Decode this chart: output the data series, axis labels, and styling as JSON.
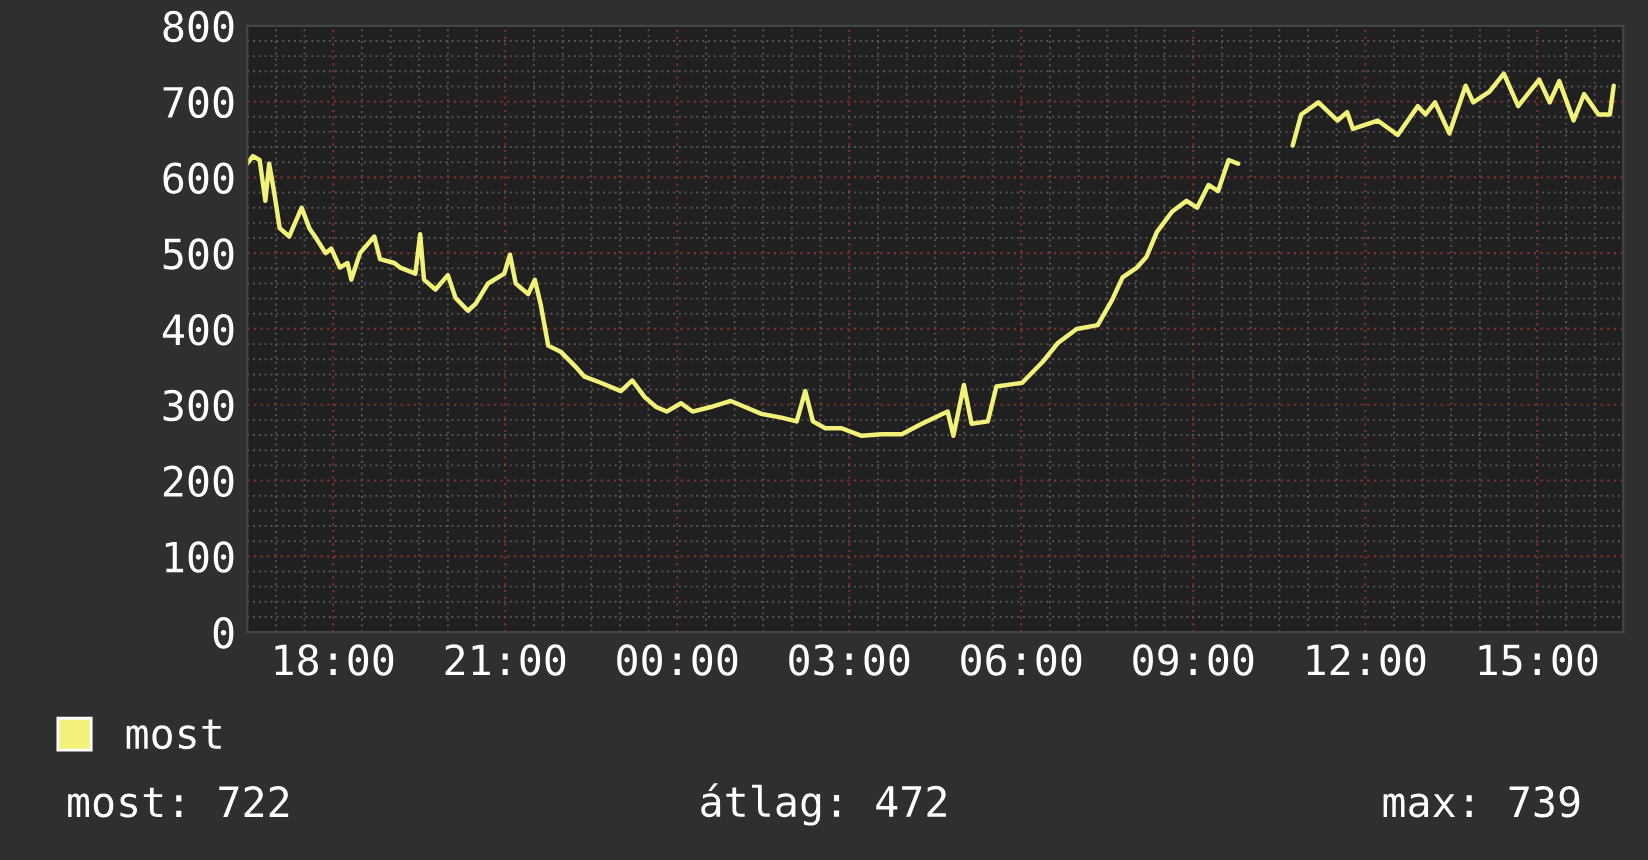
{
  "chart_data": {
    "type": "line",
    "x": [
      "2000-01-01T16:30",
      "2000-01-01T16:36",
      "2000-01-01T16:43",
      "2000-01-01T16:49",
      "2000-01-01T16:53",
      "2000-01-01T16:58",
      "2000-01-01T17:04",
      "2000-01-01T17:14",
      "2000-01-01T17:27",
      "2000-01-01T17:35",
      "2000-01-01T17:41",
      "2000-01-01T17:52",
      "2000-01-01T17:58",
      "2000-01-01T18:07",
      "2000-01-01T18:15",
      "2000-01-01T18:19",
      "2000-01-01T18:28",
      "2000-01-01T18:43",
      "2000-01-01T18:49",
      "2000-01-01T19:04",
      "2000-01-01T19:10",
      "2000-01-01T19:26",
      "2000-01-01T19:31",
      "2000-01-01T19:35",
      "2000-01-01T19:47",
      "2000-01-01T20:00",
      "2000-01-01T20:08",
      "2000-01-01T20:21",
      "2000-01-01T20:29",
      "2000-01-01T20:42",
      "2000-01-01T20:59",
      "2000-01-01T21:05",
      "2000-01-01T21:11",
      "2000-01-01T21:24",
      "2000-01-01T21:31",
      "2000-01-01T21:37",
      "2000-01-01T21:45",
      "2000-01-01T21:58",
      "2000-01-01T22:13",
      "2000-01-01T22:23",
      "2000-01-01T22:40",
      "2000-01-01T23:01",
      "2000-01-01T23:13",
      "2000-01-01T23:26",
      "2000-01-01T23:38",
      "2000-01-01T23:49",
      "2000-01-02T00:04",
      "2000-01-02T00:16",
      "2000-01-02T00:35",
      "2000-01-02T00:56",
      "2000-01-02T01:11",
      "2000-01-02T01:28",
      "2000-01-02T01:49",
      "2000-01-02T02:05",
      "2000-01-02T02:14",
      "2000-01-02T02:22",
      "2000-01-02T02:35",
      "2000-01-02T02:52",
      "2000-01-02T03:13",
      "2000-01-02T03:34",
      "2000-01-02T03:55",
      "2000-01-02T04:16",
      "2000-01-02T04:43",
      "2000-01-02T04:49",
      "2000-01-02T05:00",
      "2000-01-02T05:08",
      "2000-01-02T05:25",
      "2000-01-02T05:34",
      "2000-01-02T06:01",
      "2000-01-02T06:22",
      "2000-01-02T06:38",
      "2000-01-02T06:58",
      "2000-01-02T07:20",
      "2000-01-02T07:35",
      "2000-01-02T07:46",
      "2000-01-02T08:01",
      "2000-01-02T08:11",
      "2000-01-02T08:22",
      "2000-01-02T08:38",
      "2000-01-02T08:53",
      "2000-01-02T09:04",
      "2000-01-02T09:16",
      "2000-01-02T09:26",
      "2000-01-02T09:37",
      "2000-01-02T09:47",
      "2000-01-02T10:12",
      "2000-01-02T10:44",
      "2000-01-02T10:53",
      "2000-01-02T11:11",
      "2000-01-02T11:31",
      "2000-01-02T11:41",
      "2000-01-02T11:47",
      "2000-01-02T12:13",
      "2000-01-02T12:34",
      "2000-01-02T12:55",
      "2000-01-02T13:03",
      "2000-01-02T13:13",
      "2000-01-02T13:28",
      "2000-01-02T13:45",
      "2000-01-02T13:53",
      "2000-01-02T14:10",
      "2000-01-02T14:25",
      "2000-01-02T14:40",
      "2000-01-02T15:02",
      "2000-01-02T15:13",
      "2000-01-02T15:23",
      "2000-01-02T15:38",
      "2000-01-02T15:49",
      "2000-01-02T16:04",
      "2000-01-02T16:16",
      "2000-01-02T16:20"
    ],
    "series": [
      {
        "name": "most",
        "color": "#f2f27a",
        "values": [
          618,
          628,
          623,
          569,
          618,
          582,
          533,
          522,
          560,
          533,
          522,
          500,
          506,
          481,
          487,
          465,
          500,
          522,
          492,
          487,
          481,
          473,
          525,
          465,
          452,
          471,
          441,
          424,
          433,
          460,
          473,
          498,
          460,
          446,
          465,
          433,
          378,
          370,
          351,
          337,
          329,
          318,
          332,
          310,
          297,
          291,
          302,
          291,
          297,
          305,
          297,
          288,
          283,
          278,
          318,
          278,
          269,
          269,
          259,
          261,
          261,
          275,
          291,
          259,
          326,
          275,
          278,
          324,
          329,
          356,
          381,
          400,
          405,
          438,
          468,
          481,
          495,
          528,
          555,
          569,
          560,
          590,
          582,
          623,
          618,
          null,
          642,
          683,
          699,
          675,
          686,
          664,
          675,
          656,
          694,
          683,
          699,
          658,
          721,
          699,
          713,
          737,
          694,
          729,
          699,
          727,
          675,
          710,
          683,
          683,
          721
        ]
      }
    ],
    "xlim": [
      "2000-01-01T16:30",
      "2000-01-02T16:30"
    ],
    "xticks": [
      {
        "value": "2000-01-01T18:00",
        "label": "18:00"
      },
      {
        "value": "2000-01-01T21:00",
        "label": "21:00"
      },
      {
        "value": "2000-01-02T00:00",
        "label": "00:00"
      },
      {
        "value": "2000-01-02T03:00",
        "label": "03:00"
      },
      {
        "value": "2000-01-02T06:00",
        "label": "06:00"
      },
      {
        "value": "2000-01-02T09:00",
        "label": "09:00"
      },
      {
        "value": "2000-01-02T12:00",
        "label": "12:00"
      },
      {
        "value": "2000-01-02T15:00",
        "label": "15:00"
      }
    ],
    "ylim": [
      0,
      800
    ],
    "yticks": [
      0,
      100,
      200,
      300,
      400,
      500,
      600,
      700,
      800
    ],
    "grid": true,
    "legend": "bottom left",
    "line_style": "solid",
    "marker": "none",
    "annotations": [
      "most: 722",
      "átlag: 472",
      "max: 739"
    ]
  }
}
